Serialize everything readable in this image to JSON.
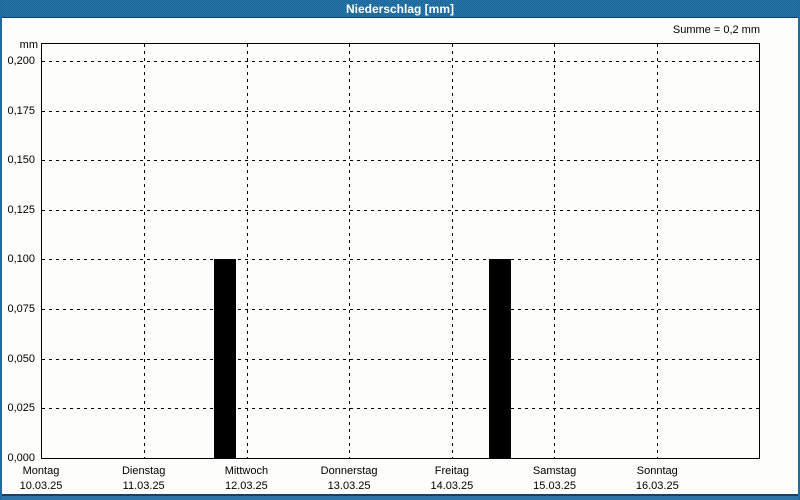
{
  "window": {
    "title": "Niederschlag [mm]"
  },
  "chart_data": {
    "type": "bar",
    "title": "Niederschlag [mm]",
    "ylabel": "mm",
    "xlabel": "",
    "summary_label": "Summe = 0,2 mm",
    "total_mm": 0.2,
    "ylim": [
      0,
      0.2085
    ],
    "grid": "dashed",
    "legend": "none",
    "y_ticks": [
      {
        "v": 0.2,
        "label": "0,200"
      },
      {
        "v": 0.175,
        "label": "0,175"
      },
      {
        "v": 0.15,
        "label": "0,150"
      },
      {
        "v": 0.125,
        "label": "0,125"
      },
      {
        "v": 0.1,
        "label": "0,100"
      },
      {
        "v": 0.075,
        "label": "0,075"
      },
      {
        "v": 0.05,
        "label": "0,050"
      },
      {
        "v": 0.025,
        "label": "0,025"
      },
      {
        "v": 0.0,
        "label": "0,000"
      }
    ],
    "days": [
      {
        "name": "Montag",
        "date": "10.03.25"
      },
      {
        "name": "Dienstag",
        "date": "11.03.25"
      },
      {
        "name": "Mittwoch",
        "date": "12.03.25"
      },
      {
        "name": "Donnerstag",
        "date": "13.03.25"
      },
      {
        "name": "Freitag",
        "date": "14.03.25"
      },
      {
        "name": "Samstag",
        "date": "15.03.25"
      },
      {
        "name": "Sonntag",
        "date": "16.03.25"
      }
    ],
    "bars": [
      {
        "center_day_offset": 1.79,
        "width_days": 0.21,
        "value_mm": 0.1
      },
      {
        "center_day_offset": 4.47,
        "width_days": 0.21,
        "value_mm": 0.1
      }
    ]
  },
  "colors": {
    "titlebar_blue": "#1f6da0",
    "titlebar_blue_dark": "#1a6296",
    "titlebar_text": "#ffffff",
    "frame_blue": "#236a9e",
    "bottombar_blue": "#2d73a8",
    "bottombar_dark": "#17406a",
    "grid_black": "#000000",
    "bar_black": "#000000",
    "plot_background": "#fdfdfc"
  }
}
